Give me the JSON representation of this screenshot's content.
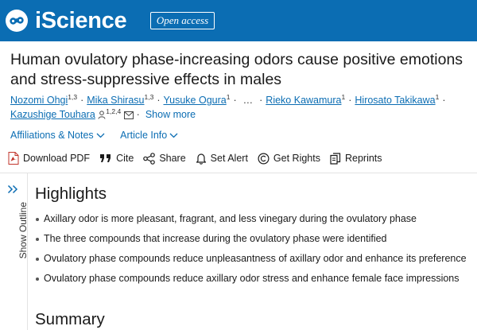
{
  "header": {
    "brand": "iScience",
    "badge": "Open access",
    "brand_color": "#0b6db3"
  },
  "article": {
    "title_line1": "Human ovulatory phase-increasing odors cause positive emotions",
    "title_line2": "and stress-suppressive effects in males"
  },
  "authors": {
    "list": [
      {
        "name": "Nozomi Ohgi",
        "sup": "1,3"
      },
      {
        "name": "Mika Shirasu",
        "sup": "1,3"
      },
      {
        "name": "Yusuke Ogura",
        "sup": "1"
      },
      {
        "name": "Rieko Kawamura",
        "sup": "1"
      },
      {
        "name": "Hirosato Takikawa",
        "sup": "1"
      },
      {
        "name": "Kazushige Touhara",
        "sup": "1,2,4"
      }
    ],
    "ellipsis": "…",
    "show_more": "Show more"
  },
  "meta": {
    "affiliations": "Affiliations & Notes",
    "article_info": "Article Info"
  },
  "toolbar": {
    "download_pdf": "Download PDF",
    "cite": "Cite",
    "share": "Share",
    "set_alert": "Set Alert",
    "get_rights": "Get Rights",
    "reprints": "Reprints"
  },
  "outline": {
    "label": "Show Outline"
  },
  "highlights": {
    "heading": "Highlights",
    "items": [
      "Axillary odor is more pleasant, fragrant, and less vinegary during the ovulatory phase",
      "The three compounds that increase during the ovulatory phase were identified",
      "Ovulatory phase compounds reduce unpleasantness of axillary odor and enhance its preference",
      "Ovulatory phase compounds reduce axillary odor stress and enhance female face impressions"
    ]
  },
  "summary": {
    "heading": "Summary"
  },
  "icons": {
    "logo": "iscience-logo-icon",
    "pdf": "pdf-icon",
    "cite": "quote-icon",
    "share": "share-icon",
    "alert": "bell-icon",
    "rights": "copyright-icon",
    "reprints": "reprints-icon"
  }
}
